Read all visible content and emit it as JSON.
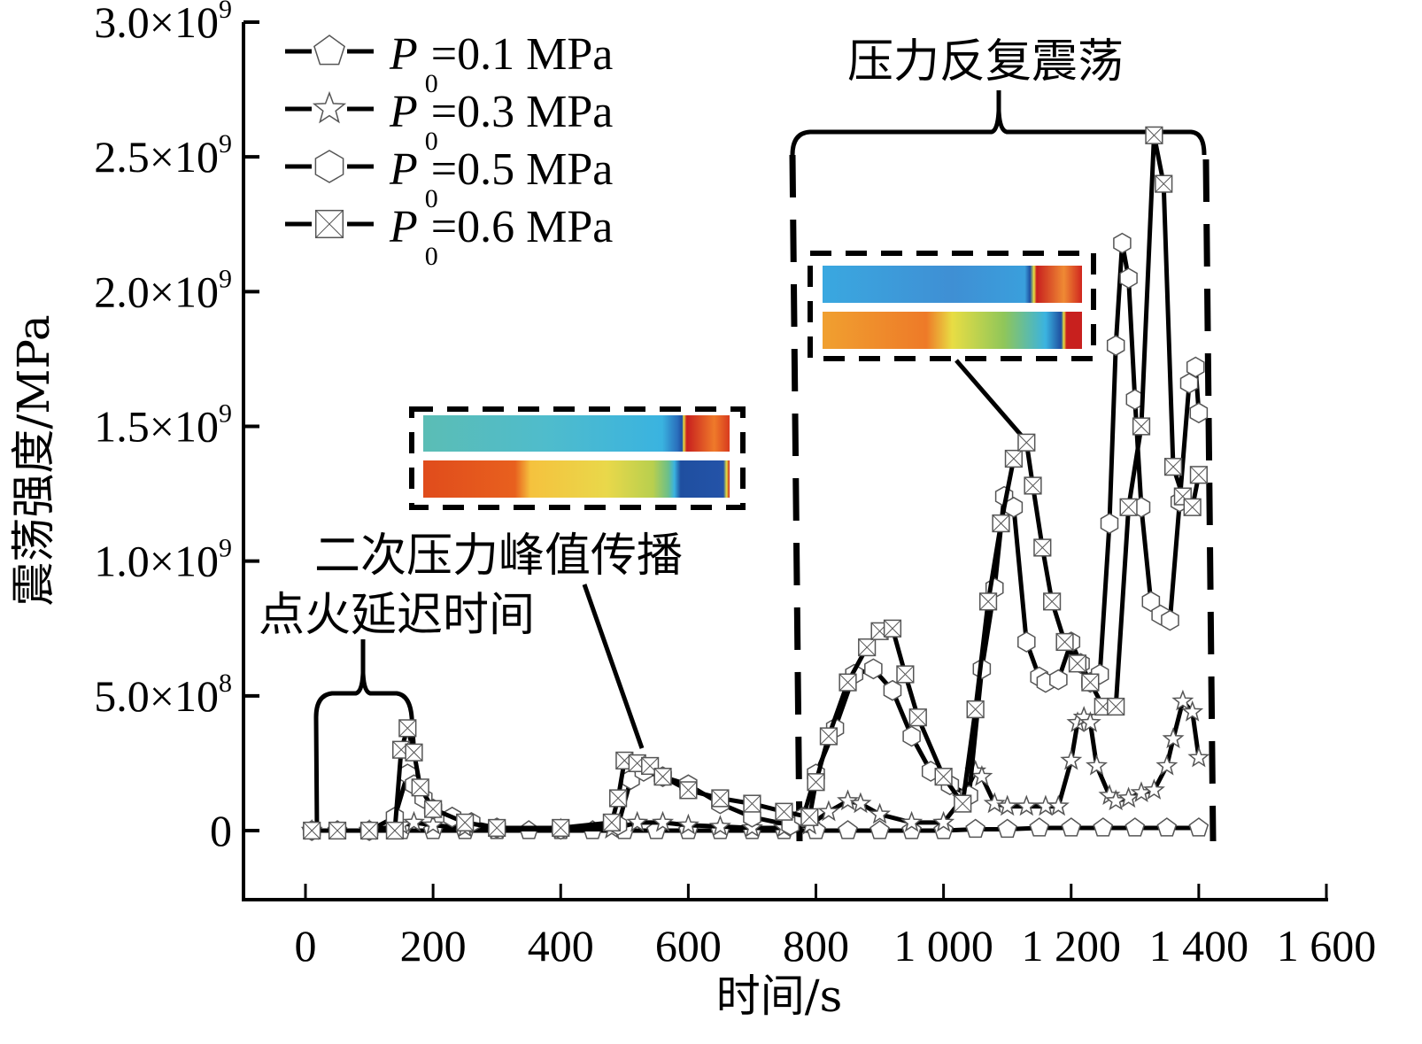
{
  "chart_data": {
    "type": "line",
    "title": "",
    "xlabel": "时间/s",
    "ylabel": "震荡强度/MPa",
    "xlim": [
      -100,
      1600
    ],
    "ylim": [
      -250000000.0,
      3000000000.0
    ],
    "grid": false,
    "legend_position": "top-left",
    "x_ticks": [
      0,
      200,
      400,
      600,
      800,
      1000,
      1200,
      1400,
      1600
    ],
    "x_tick_labels": [
      "0",
      "200",
      "400",
      "600",
      "800",
      "1 000",
      "1 200",
      "1 400",
      "1 600"
    ],
    "y_ticks": [
      0,
      500000000.0,
      1000000000.0,
      1500000000.0,
      2000000000.0,
      2500000000.0,
      3000000000.0
    ],
    "y_tick_labels": [
      {
        "mantissa": "0",
        "exp": ""
      },
      {
        "mantissa": "5.0×10",
        "exp": "8"
      },
      {
        "mantissa": "1.0×10",
        "exp": "9"
      },
      {
        "mantissa": "1.5×10",
        "exp": "9"
      },
      {
        "mantissa": "2.0×10",
        "exp": "9"
      },
      {
        "mantissa": "2.5×10",
        "exp": "9"
      },
      {
        "mantissa": "3.0×10",
        "exp": "9"
      }
    ],
    "series": [
      {
        "name": "P0=0.1 MPa",
        "label_main": "P",
        "label_sub": "0",
        "label_rest": "=0.1 MPa",
        "marker": "pentagon",
        "x": [
          10,
          50,
          100,
          150,
          200,
          250,
          300,
          350,
          400,
          450,
          500,
          550,
          600,
          650,
          700,
          750,
          800,
          850,
          900,
          950,
          1000,
          1050,
          1100,
          1150,
          1200,
          1250,
          1300,
          1350,
          1400
        ],
        "y": [
          0,
          0,
          0,
          0,
          0,
          0,
          0,
          0,
          0,
          0,
          0,
          0,
          0,
          0,
          0,
          0,
          0,
          0,
          0,
          0,
          0,
          5000000.0,
          5000000.0,
          10000000.0,
          10000000.0,
          10000000.0,
          10000000.0,
          10000000.0,
          10000000.0
        ]
      },
      {
        "name": "P0=0.3 MPa",
        "label_main": "P",
        "label_sub": "0",
        "label_rest": "=0.3 MPa",
        "marker": "star",
        "x": [
          10,
          100,
          150,
          170,
          200,
          250,
          300,
          400,
          480,
          520,
          560,
          600,
          650,
          700,
          750,
          790,
          820,
          850,
          870,
          900,
          950,
          1000,
          1030,
          1050,
          1060,
          1080,
          1100,
          1130,
          1160,
          1180,
          1200,
          1210,
          1220,
          1230,
          1240,
          1260,
          1270,
          1290,
          1310,
          1330,
          1350,
          1360,
          1375,
          1390,
          1400
        ],
        "y": [
          0,
          0,
          20000000.0,
          30000000.0,
          20000000.0,
          10000000.0,
          5000000.0,
          5000000.0,
          5000000.0,
          30000000.0,
          30000000.0,
          20000000.0,
          15000000.0,
          10000000.0,
          10000000.0,
          20000000.0,
          70000000.0,
          110000000.0,
          100000000.0,
          60000000.0,
          30000000.0,
          30000000.0,
          120000000.0,
          220000000.0,
          200000000.0,
          100000000.0,
          90000000.0,
          90000000.0,
          90000000.0,
          90000000.0,
          260000000.0,
          400000000.0,
          420000000.0,
          400000000.0,
          240000000.0,
          130000000.0,
          110000000.0,
          120000000.0,
          140000000.0,
          150000000.0,
          240000000.0,
          340000000.0,
          480000000.0,
          440000000.0,
          270000000.0
        ]
      },
      {
        "name": "P0=0.5 MPa",
        "label_main": "P",
        "label_sub": "0",
        "label_rest": "=0.5 MPa",
        "marker": "hexagon",
        "x": [
          10,
          100,
          140,
          160,
          170,
          185,
          200,
          230,
          260,
          300,
          400,
          490,
          510,
          530,
          560,
          600,
          650,
          700,
          760,
          780,
          800,
          830,
          860,
          890,
          920,
          950,
          980,
          1010,
          1040,
          1060,
          1080,
          1095,
          1110,
          1130,
          1150,
          1160,
          1180,
          1200,
          1215,
          1230,
          1245,
          1260,
          1270,
          1280,
          1290,
          1300,
          1310,
          1325,
          1340,
          1355,
          1370,
          1385,
          1395,
          1400
        ],
        "y": [
          0,
          0,
          50000000.0,
          210000000.0,
          170000000.0,
          120000000.0,
          80000000.0,
          50000000.0,
          30000000.0,
          10000000.0,
          5000000.0,
          20000000.0,
          190000000.0,
          220000000.0,
          200000000.0,
          170000000.0,
          100000000.0,
          50000000.0,
          20000000.0,
          50000000.0,
          210000000.0,
          380000000.0,
          580000000.0,
          600000000.0,
          520000000.0,
          350000000.0,
          220000000.0,
          170000000.0,
          130000000.0,
          600000000.0,
          900000000.0,
          1240000000.0,
          1200000000.0,
          700000000.0,
          570000000.0,
          550000000.0,
          560000000.0,
          700000000.0,
          620000000.0,
          550000000.0,
          580000000.0,
          1140000000.0,
          1800000000.0,
          2180000000.0,
          2050000000.0,
          1600000000.0,
          1200000000.0,
          850000000.0,
          800000000.0,
          780000000.0,
          1220000000.0,
          1660000000.0,
          1720000000.0,
          1550000000.0
        ]
      },
      {
        "name": "P0=0.6 MPa",
        "label_main": "P",
        "label_sub": "0",
        "label_rest": "=0.6 MPa",
        "marker": "boxcross",
        "x": [
          10,
          50,
          100,
          140,
          150,
          160,
          170,
          180,
          200,
          250,
          300,
          400,
          480,
          490,
          500,
          520,
          540,
          560,
          600,
          650,
          700,
          750,
          790,
          800,
          820,
          850,
          880,
          900,
          920,
          940,
          960,
          1000,
          1030,
          1050,
          1070,
          1090,
          1110,
          1130,
          1140,
          1155,
          1170,
          1190,
          1210,
          1230,
          1250,
          1270,
          1290,
          1310,
          1330,
          1345,
          1360,
          1375,
          1390,
          1400
        ],
        "y": [
          0,
          0,
          0,
          0,
          300000000.0,
          380000000.0,
          290000000.0,
          160000000.0,
          80000000.0,
          30000000.0,
          10000000.0,
          10000000.0,
          30000000.0,
          120000000.0,
          260000000.0,
          250000000.0,
          240000000.0,
          200000000.0,
          150000000.0,
          120000000.0,
          100000000.0,
          70000000.0,
          50000000.0,
          180000000.0,
          350000000.0,
          550000000.0,
          680000000.0,
          740000000.0,
          750000000.0,
          580000000.0,
          420000000.0,
          200000000.0,
          100000000.0,
          450000000.0,
          850000000.0,
          1140000000.0,
          1380000000.0,
          1440000000.0,
          1280000000.0,
          1050000000.0,
          850000000.0,
          700000000.0,
          620000000.0,
          550000000.0,
          460000000.0,
          460000000.0,
          1200000000.0,
          1500000000.0,
          2580000000.0,
          2400000000.0,
          1350000000.0,
          1240000000.0,
          1200000000.0,
          1320000000.0
        ]
      }
    ],
    "annotations": [
      {
        "text": "点火延迟时间"
      },
      {
        "text": "二次压力峰值传播"
      },
      {
        "text": "压力反复震荡"
      }
    ],
    "colors": {
      "line": "#000000",
      "marker_stroke": "#555555",
      "marker_fill": "#ffffff"
    }
  }
}
